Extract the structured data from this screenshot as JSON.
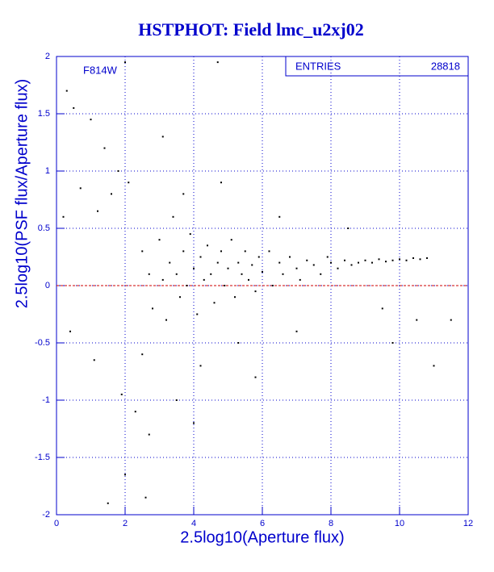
{
  "chart_data": {
    "type": "scatter",
    "title": "HSTPHOT: Field lmc_u2xj02",
    "x_label": "2.5log10(Aperture flux)",
    "y_label": "2.5log10(PSF flux/Aperture flux)",
    "annotation": "F814W",
    "stats": {
      "label": "ENTRIES",
      "value": 28818
    },
    "xlim": [
      0,
      12
    ],
    "ylim": [
      -2,
      2
    ],
    "xticks": [
      0,
      2,
      4,
      6,
      8,
      10,
      12
    ],
    "yticks": [
      -2,
      -1.5,
      -1,
      -0.5,
      0,
      0.5,
      1,
      1.5,
      2
    ],
    "grid": true,
    "grid_color": "#0000cc",
    "axis_color": "#0000cc",
    "color": "#000000",
    "reference_line": {
      "value": 0,
      "color": "#cc0000"
    },
    "x": [
      2.5,
      2.7,
      2.8,
      3.0,
      3.1,
      3.2,
      3.3,
      3.4,
      3.5,
      3.6,
      3.7,
      3.8,
      3.9,
      4.0,
      4.1,
      4.2,
      4.3,
      4.4,
      4.5,
      4.6,
      4.7,
      4.8,
      4.9,
      5.0,
      5.1,
      5.2,
      5.3,
      5.4,
      5.5,
      5.6,
      5.7,
      5.8,
      5.9,
      6.0,
      6.2,
      6.3,
      6.5,
      6.6,
      6.8,
      7.0,
      7.1,
      7.3,
      7.5,
      7.7,
      7.9,
      8.0,
      8.2,
      8.4,
      8.6,
      8.8,
      9.0,
      9.2,
      9.4,
      9.6,
      9.8,
      10.0,
      10.2,
      10.4,
      10.6,
      10.8,
      0.3,
      0.5,
      0.7,
      1.0,
      1.2,
      1.4,
      1.6,
      1.8,
      1.9,
      2.0,
      2.1,
      2.3,
      2.5,
      2.7,
      3.1,
      3.5,
      3.7,
      4.0,
      4.2,
      4.8,
      5.3,
      5.8,
      6.5,
      7.0,
      8.5,
      9.5,
      9.8,
      10.5,
      11.0,
      11.5,
      1.5,
      2.0,
      2.6,
      4.7,
      0.2,
      0.4,
      1.1
    ],
    "y": [
      0.3,
      0.1,
      -0.2,
      0.4,
      0.05,
      -0.3,
      0.2,
      0.6,
      0.1,
      -0.1,
      0.3,
      0.0,
      0.45,
      0.15,
      -0.25,
      0.25,
      0.05,
      0.35,
      0.1,
      -0.15,
      0.2,
      0.3,
      0.0,
      0.15,
      0.4,
      -0.1,
      0.2,
      0.1,
      0.3,
      0.05,
      0.18,
      -0.05,
      0.25,
      0.12,
      0.3,
      0.0,
      0.2,
      0.1,
      0.25,
      0.15,
      0.05,
      0.22,
      0.18,
      0.1,
      0.25,
      0.2,
      0.15,
      0.22,
      0.18,
      0.2,
      0.22,
      0.2,
      0.23,
      0.21,
      0.22,
      0.23,
      0.22,
      0.24,
      0.23,
      0.24,
      1.7,
      1.55,
      0.85,
      1.45,
      0.65,
      1.2,
      0.8,
      1.0,
      -0.95,
      1.95,
      0.9,
      -1.1,
      -0.6,
      -1.3,
      1.3,
      -1.0,
      0.8,
      -1.2,
      -0.7,
      0.9,
      -0.5,
      -0.8,
      0.6,
      -0.4,
      0.5,
      -0.2,
      -0.5,
      -0.3,
      -0.7,
      -0.3,
      -1.9,
      -1.65,
      -1.85,
      1.95,
      0.6,
      -0.4,
      -0.65
    ]
  }
}
